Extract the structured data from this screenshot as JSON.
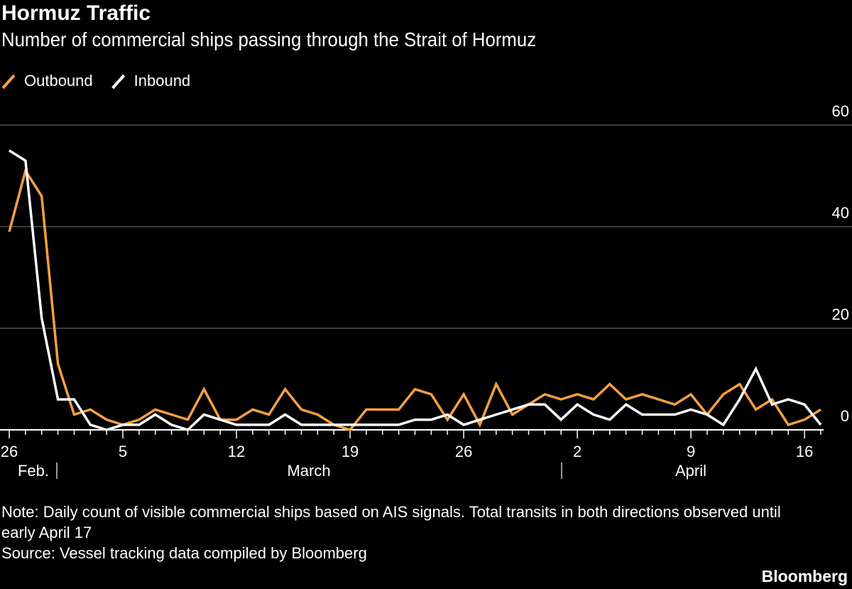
{
  "chart_data": {
    "type": "line",
    "title": "Hormuz Traffic",
    "subtitle": "Number of commercial ships passing through the Strait of Hormuz",
    "categories": [
      "26",
      null,
      null,
      null,
      null,
      null,
      null,
      "5",
      null,
      null,
      null,
      null,
      null,
      null,
      "12",
      null,
      null,
      null,
      null,
      null,
      null,
      "19",
      null,
      null,
      null,
      null,
      null,
      null,
      "26",
      null,
      null,
      null,
      null,
      null,
      null,
      "2",
      null,
      null,
      null,
      null,
      null,
      null,
      "9",
      null,
      null,
      null,
      null,
      null,
      null,
      "16",
      null
    ],
    "month_labels": [
      "Feb.",
      "March",
      "April"
    ],
    "series": [
      {
        "name": "Outbound",
        "color": "#f5a040",
        "values": [
          39,
          51,
          46,
          13,
          3,
          4,
          2,
          1,
          2,
          4,
          3,
          2,
          8,
          2,
          2,
          4,
          3,
          8,
          4,
          3,
          1,
          0,
          4,
          4,
          4,
          8,
          7,
          2,
          7,
          1,
          9,
          3,
          5,
          7,
          6,
          7,
          6,
          9,
          6,
          7,
          6,
          5,
          7,
          3,
          7,
          9,
          4,
          6,
          1,
          2,
          4
        ]
      },
      {
        "name": "Inbound",
        "color": "#ffffff",
        "values": [
          55,
          53,
          22,
          6,
          6,
          1,
          0,
          1,
          1,
          3,
          1,
          0,
          3,
          2,
          1,
          1,
          1,
          3,
          1,
          1,
          1,
          1,
          1,
          1,
          1,
          2,
          2,
          3,
          1,
          2,
          3,
          4,
          5,
          5,
          2,
          5,
          3,
          2,
          5,
          3,
          3,
          3,
          4,
          3,
          1,
          6,
          12,
          5,
          6,
          5,
          1
        ]
      }
    ],
    "ylim": [
      0,
      60
    ],
    "yticks": [
      0,
      20,
      40,
      60
    ],
    "grid": true,
    "note": "Note: Daily count of visible commercial ships based on AIS signals. Total transits in both directions observed until early April 17",
    "source": "Source: Vessel tracking data compiled by Bloomberg",
    "brand": "Bloomberg"
  }
}
